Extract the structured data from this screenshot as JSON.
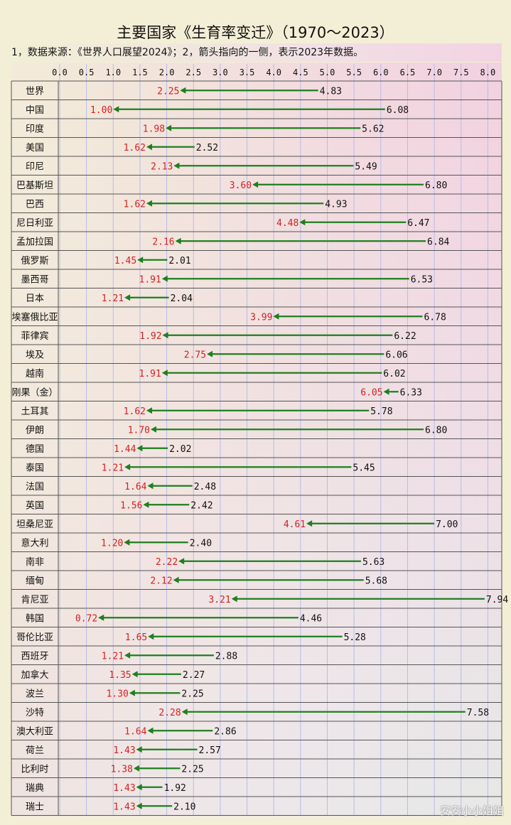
{
  "title": "主要国家《生育率变迁》（1970～2023）",
  "subtitle": "1，数据来源：《世界人口展望2024》；2，箭头指向的一侧，表示2023年数据。",
  "watermark": "安安小小姐姐",
  "colors": {
    "arrow": "#1e7f1e",
    "value_2023": "#d62020",
    "value_1970": "#111111",
    "grid": "#b8bde6",
    "row_border": "#555555"
  },
  "chart_data": {
    "type": "bar",
    "orientation": "horizontal",
    "title": "主要国家《生育率变迁》（1970～2023）",
    "xlim": [
      0,
      8
    ],
    "x_ticks": [
      "0.0",
      "0.5",
      "1.0",
      "1.5",
      "2.0",
      "2.5",
      "3.0",
      "3.5",
      "4.0",
      "4.5",
      "5.0",
      "5.5",
      "6.0",
      "6.5",
      "7.0",
      "7.5",
      "8.0"
    ],
    "categories": [
      "世界",
      "中国",
      "印度",
      "美国",
      "印尼",
      "巴基斯坦",
      "巴西",
      "尼日利亚",
      "孟加拉国",
      "俄罗斯",
      "墨西哥",
      "日本",
      "埃塞俄比亚",
      "菲律宾",
      "埃及",
      "越南",
      "刚果（金）",
      "土耳其",
      "伊朗",
      "德国",
      "泰国",
      "法国",
      "英国",
      "坦桑尼亚",
      "意大利",
      "南非",
      "缅甸",
      "肯尼亚",
      "韩国",
      "哥伦比亚",
      "西班牙",
      "加拿大",
      "波兰",
      "沙特",
      "澳大利亚",
      "荷兰",
      "比利时",
      "瑞典",
      "瑞士"
    ],
    "series": [
      {
        "name": "1970",
        "values": [
          4.83,
          6.08,
          5.62,
          2.52,
          5.49,
          6.8,
          4.93,
          6.47,
          6.84,
          2.01,
          6.53,
          2.04,
          6.78,
          6.22,
          6.06,
          6.02,
          6.33,
          5.78,
          6.8,
          2.02,
          5.45,
          2.48,
          2.42,
          7.0,
          2.4,
          5.63,
          5.68,
          7.94,
          4.46,
          5.28,
          2.88,
          2.27,
          2.25,
          7.58,
          2.86,
          2.57,
          2.25,
          1.92,
          2.1
        ]
      },
      {
        "name": "2023",
        "values": [
          2.25,
          1.0,
          1.98,
          1.62,
          2.13,
          3.6,
          1.62,
          4.48,
          2.16,
          1.45,
          1.91,
          1.21,
          3.99,
          1.92,
          2.75,
          1.91,
          6.05,
          1.62,
          1.7,
          1.44,
          1.21,
          1.64,
          1.56,
          4.61,
          1.2,
          2.22,
          2.12,
          3.21,
          0.72,
          1.65,
          1.21,
          1.35,
          1.3,
          2.28,
          1.64,
          1.43,
          1.38,
          1.43,
          1.43
        ]
      }
    ],
    "series_labels_1970": [
      "4.83",
      "6.08",
      "5.62",
      "2.52",
      "5.49",
      "6.80",
      "4.93",
      "6.47",
      "6.84",
      "2.01",
      "6.53",
      "2.04",
      "6.78",
      "6.22",
      "6.06",
      "6.02",
      "6.33",
      "5.78",
      "6.80",
      "2.02",
      "5.45",
      "2.48",
      "2.42",
      "7.00",
      "2.40",
      "5.63",
      "5.68",
      "7.94",
      "4.46",
      "5.28",
      "2.88",
      "2.27",
      "2.25",
      "7.58",
      "2.86",
      "2.57",
      "2.25",
      "1.92",
      "2.10"
    ],
    "series_labels_2023": [
      "2.25",
      "1.00",
      "1.98",
      "1.62",
      "2.13",
      "3.60",
      "1.62",
      "4.48",
      "2.16",
      "1.45",
      "1.91",
      "1.21",
      "3.99",
      "1.92",
      "2.75",
      "1.91",
      "6.05",
      "1.62",
      "1.70",
      "1.44",
      "1.21",
      "1.64",
      "1.56",
      "4.61",
      "1.20",
      "2.22",
      "2.12",
      "3.21",
      "0.72",
      "1.65",
      "1.21",
      "1.35",
      "1.30",
      "2.28",
      "1.64",
      "1.43",
      "1.38",
      "1.43",
      "1.43"
    ],
    "grid": true
  }
}
